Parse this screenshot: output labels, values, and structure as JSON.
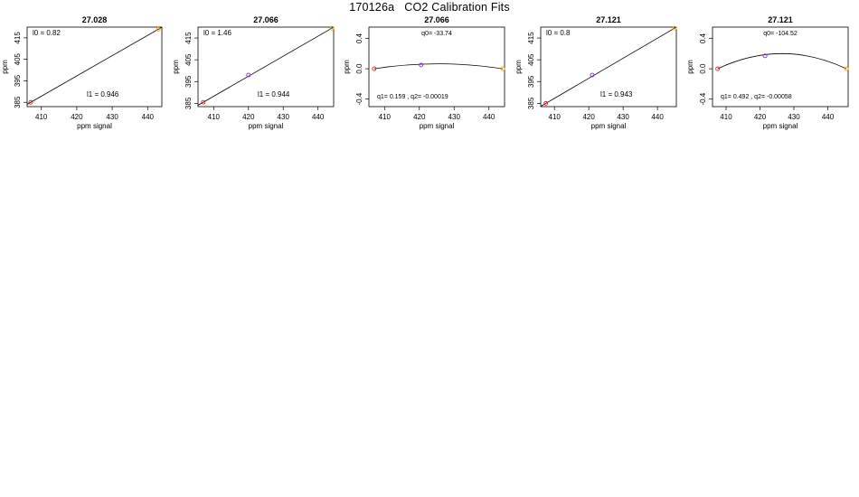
{
  "page": {
    "title": "170126a   CO2 Calibration Fits"
  },
  "colors": {
    "low": "#d62728",
    "mid": "#8a2be2",
    "high": "#f5a400",
    "line": "#000000"
  },
  "chart_data": [
    {
      "type": "line",
      "fit": "linear",
      "title": "27.028",
      "xlabel": "ppm signal",
      "ylabel": "ppm",
      "xlim": [
        406,
        444
      ],
      "ylim": [
        383,
        420
      ],
      "xticks": [
        410,
        420,
        430,
        440
      ],
      "yticks": [
        385,
        395,
        405,
        415
      ],
      "points": [
        {
          "x": 407,
          "y": 385,
          "c": "low"
        },
        {
          "x": 443,
          "y": 419,
          "c": "high"
        }
      ],
      "coef_labels": [
        "l0 =  0.82",
        "l1 =  0.946"
      ],
      "coefs": [
        0.82,
        0.946
      ]
    },
    {
      "type": "line",
      "fit": "linear",
      "title": "27.066",
      "xlabel": "ppm signal",
      "ylabel": "ppm",
      "xlim": [
        405.5,
        444.5
      ],
      "ylim": [
        383.5,
        420
      ],
      "xticks": [
        410,
        420,
        430,
        440
      ],
      "yticks": [
        385,
        395,
        405,
        415
      ],
      "points": [
        {
          "x": 407,
          "y": 385.5,
          "c": "low"
        },
        {
          "x": 420,
          "y": 398,
          "c": "mid"
        },
        {
          "x": 444,
          "y": 419.5,
          "c": "high"
        }
      ],
      "coef_labels": [
        "l0 =  1.46",
        "l1 =  0.944"
      ],
      "coefs": [
        1.46,
        0.944
      ]
    },
    {
      "type": "line",
      "fit": "quadratic",
      "title": "27.066",
      "xlabel": "ppm signal",
      "ylabel": "ppm",
      "xlim": [
        405.5,
        444.5
      ],
      "ylim": [
        -0.5,
        0.55
      ],
      "xticks": [
        410,
        420,
        430,
        440
      ],
      "yticks": [
        -0.4,
        0.0,
        0.4
      ],
      "points": [
        {
          "x": 407,
          "y": 0.0,
          "c": "low"
        },
        {
          "x": 420.5,
          "y": 0.05,
          "c": "mid"
        },
        {
          "x": 444,
          "y": 0.0,
          "c": "high"
        }
      ],
      "coef_labels": [
        "q0= -33.74",
        "q1= 0.159 , q2= -0.00019"
      ],
      "curve": [
        {
          "x": 407,
          "y": 0.0
        },
        {
          "x": 425.5,
          "y": 0.065
        },
        {
          "x": 444,
          "y": 0.0
        }
      ]
    },
    {
      "type": "line",
      "fit": "linear",
      "title": "27.121",
      "xlabel": "ppm signal",
      "ylabel": "ppm",
      "xlim": [
        406,
        445.5
      ],
      "ylim": [
        383.5,
        420
      ],
      "xticks": [
        410,
        420,
        430,
        440
      ],
      "yticks": [
        385,
        395,
        405,
        415
      ],
      "points": [
        {
          "x": 407.5,
          "y": 385,
          "c": "low"
        },
        {
          "x": 421,
          "y": 398,
          "c": "mid"
        },
        {
          "x": 445,
          "y": 419.5,
          "c": "high"
        }
      ],
      "coef_labels": [
        "l0 =  0.8",
        "l1 =  0.943"
      ],
      "coefs": [
        0.8,
        0.943
      ]
    },
    {
      "type": "line",
      "fit": "quadratic",
      "title": "27.121",
      "xlabel": "ppm signal",
      "ylabel": "ppm",
      "xlim": [
        406,
        446
      ],
      "ylim": [
        -0.5,
        0.55
      ],
      "xticks": [
        410,
        420,
        430,
        440
      ],
      "yticks": [
        -0.4,
        0.0,
        0.4
      ],
      "points": [
        {
          "x": 407.5,
          "y": 0.0,
          "c": "low"
        },
        {
          "x": 421.5,
          "y": 0.17,
          "c": "mid"
        },
        {
          "x": 445.5,
          "y": 0.0,
          "c": "high"
        }
      ],
      "coef_labels": [
        "q0= -104.52",
        "q1= 0.492 , q2= -0.00058"
      ],
      "curve": [
        {
          "x": 407.5,
          "y": 0.0
        },
        {
          "x": 426.5,
          "y": 0.2
        },
        {
          "x": 445.5,
          "y": 0.0
        }
      ]
    }
  ]
}
